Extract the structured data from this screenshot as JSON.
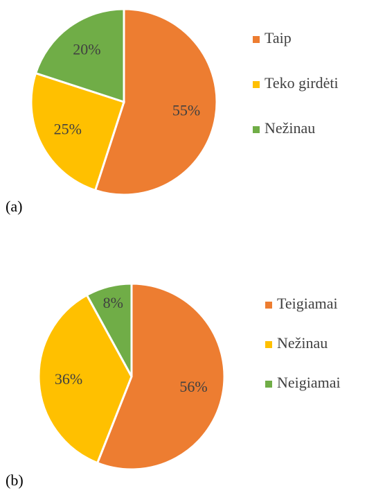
{
  "chart_data": [
    {
      "type": "pie",
      "label": "(a)",
      "categories": [
        "Taip",
        "Teko girdėti",
        "Nežinau"
      ],
      "values": [
        55,
        25,
        20
      ],
      "value_labels": [
        "55%",
        "25%",
        "20%"
      ],
      "colors": [
        "#ED7D31",
        "#FFC000",
        "#70AD47"
      ]
    },
    {
      "type": "pie",
      "label": "(b)",
      "categories": [
        "Teigiamai",
        "Nežinau",
        "Neigiamai"
      ],
      "values": [
        56,
        36,
        8
      ],
      "value_labels": [
        "56%",
        "36%",
        "8%"
      ],
      "colors": [
        "#ED7D31",
        "#FFC000",
        "#70AD47"
      ]
    }
  ]
}
